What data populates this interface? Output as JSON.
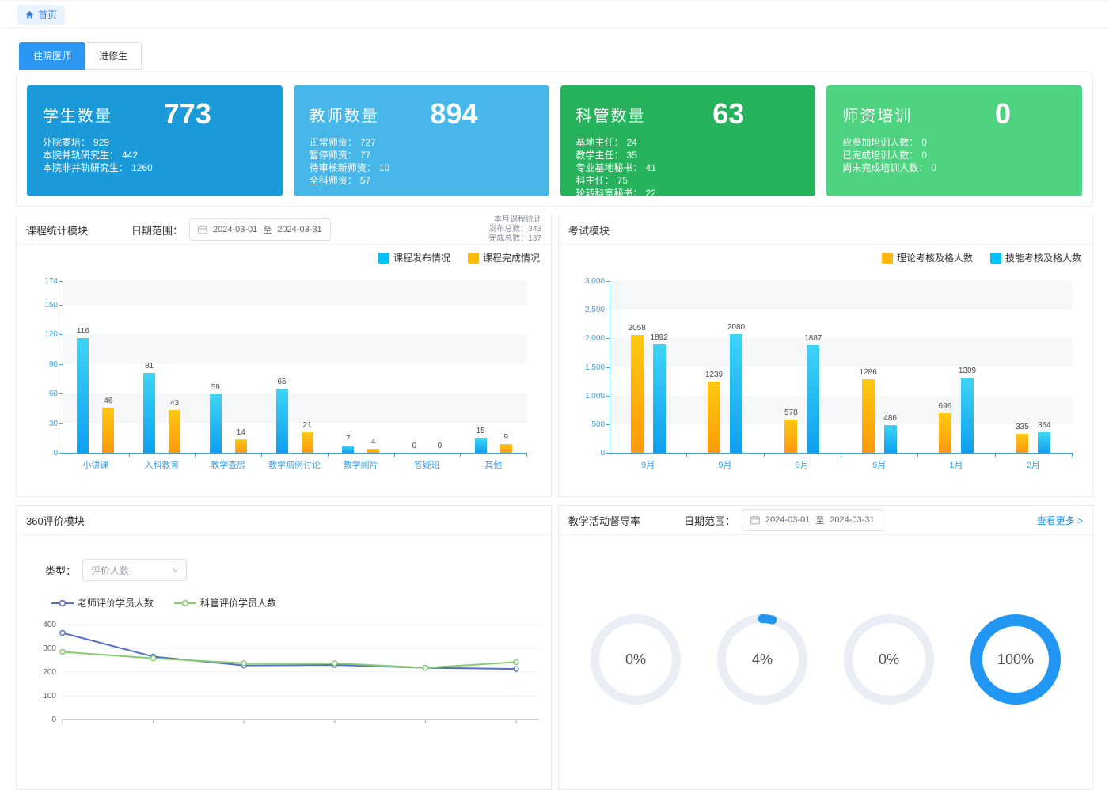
{
  "breadcrumb": {
    "home": "首页"
  },
  "tabs": [
    {
      "label": "住院医师",
      "active": true
    },
    {
      "label": "进修生",
      "active": false
    }
  ],
  "colors": {
    "accent_blue": "#2b96f3",
    "axis_blue": "#3aa2e8",
    "donut_blue": "#2196f3",
    "donut_track": "#e9edf4",
    "card_student": "#1a9ad8",
    "card_teacher": "#47b7ea",
    "card_dept": "#26b35c",
    "card_training": "#4ed480"
  },
  "stat_cards": [
    {
      "title": "学生数量",
      "value": "773",
      "bg": "#1a9ad8",
      "items": [
        {
          "label": "外院委培：",
          "value": "929"
        },
        {
          "label": "本院并轨研究生：",
          "value": "442"
        },
        {
          "label": "本院非并轨研究生：",
          "value": "1260"
        }
      ]
    },
    {
      "title": "教师数量",
      "value": "894",
      "bg": "#47b7ea",
      "items": [
        {
          "label": "正常师资：",
          "value": "727"
        },
        {
          "label": "暂停师资：",
          "value": "77"
        },
        {
          "label": "待审核新师资：",
          "value": "10"
        },
        {
          "label": "全科师资：",
          "value": "57"
        }
      ]
    },
    {
      "title": "科管数量",
      "value": "63",
      "bg": "#26b35c",
      "items": [
        {
          "label": "基地主任：",
          "value": "24"
        },
        {
          "label": "教学主任：",
          "value": "35"
        },
        {
          "label": "专业基地秘书：",
          "value": "41"
        },
        {
          "label": "科主任：",
          "value": "75"
        },
        {
          "label": "轮转科室秘书：",
          "value": "22"
        }
      ]
    },
    {
      "title": "师资培训",
      "value": "0",
      "bg": "#4ed480",
      "items": [
        {
          "label": "应参加培训人数：",
          "value": "0"
        },
        {
          "label": "已完成培训人数：",
          "value": "0"
        },
        {
          "label": "尚未完成培训人数：",
          "value": "0"
        }
      ]
    }
  ],
  "course_module": {
    "title": "课程统计模块",
    "date_label": "日期范围：",
    "date_start": "2024-03-01",
    "date_sep": "至",
    "date_end": "2024-03-31",
    "summary_line1": "本月课程统计",
    "summary_line2": "发布总数：343",
    "summary_line3": "完成总数：137"
  },
  "exam_module": {
    "title": "考试模块"
  },
  "eval_module": {
    "title": "360评价模块",
    "type_label": "类型：",
    "type_value": "评价人数"
  },
  "supervision_module": {
    "title": "教学活动督导率",
    "date_label": "日期范围：",
    "date_start": "2024-03-01",
    "date_sep": "至",
    "date_end": "2024-03-31",
    "more_link": "查看更多 >",
    "donuts": [
      {
        "label": "0%"
      },
      {
        "label": "4%"
      },
      {
        "label": "0%"
      },
      {
        "label": "100%"
      }
    ]
  },
  "chart_data": [
    {
      "id": "course",
      "type": "bar",
      "title": "课程统计模块",
      "categories": [
        "小讲课",
        "入科教育",
        "教学查房",
        "教学病例讨论",
        "教学阅片",
        "答疑班",
        "其他"
      ],
      "series": [
        {
          "name": "课程发布情况",
          "values": [
            116,
            81,
            59,
            65,
            7,
            0,
            15
          ],
          "gradient": [
            "#3fd4f4",
            "#0f9ff0"
          ],
          "legend_color": "#00c0f5"
        },
        {
          "name": "课程完成情况",
          "values": [
            46,
            43,
            14,
            21,
            4,
            0,
            9
          ],
          "gradient": [
            "#ffc813",
            "#ff990d"
          ],
          "legend_color": "#ffb80e"
        }
      ],
      "ylim": [
        0,
        174
      ],
      "yticks": [
        0,
        30,
        60,
        90,
        120,
        150,
        174
      ],
      "legend_position": "top-right",
      "grid": "split-area"
    },
    {
      "id": "exam",
      "type": "bar",
      "title": "考试模块",
      "categories": [
        "9月",
        "9月",
        "9月",
        "9月",
        "1月",
        "2月"
      ],
      "series": [
        {
          "name": "理论考核及格人数",
          "values": [
            2058,
            1239,
            578,
            1286,
            696,
            335
          ],
          "gradient": [
            "#ffc813",
            "#ff990d"
          ],
          "legend_color": "#ffb80e"
        },
        {
          "name": "技能考核及格人数",
          "values": [
            1892,
            2080,
            1887,
            486,
            1309,
            354
          ],
          "gradient": [
            "#3fd4f4",
            "#0f9ff0"
          ],
          "legend_color": "#00c0f5"
        }
      ],
      "ylim": [
        0,
        3000
      ],
      "yticks": [
        0,
        500,
        1000,
        1500,
        2000,
        2500,
        3000
      ],
      "ytick_labels": [
        "0",
        "500",
        "1,000",
        "1,500",
        "2,000",
        "2,500",
        "3,000"
      ],
      "legend_position": "top-right",
      "grid": "split-area"
    },
    {
      "id": "eval360",
      "type": "line",
      "title": "360评价模块",
      "series": [
        {
          "name": "老师评价学员人数",
          "values": [
            365,
            265,
            228,
            230,
            218,
            213
          ],
          "color": "#5470c6"
        },
        {
          "name": "科管评价学员人数",
          "values": [
            285,
            258,
            237,
            237,
            218,
            242
          ],
          "color": "#85cc71"
        }
      ],
      "ylim": [
        0,
        400
      ],
      "yticks": [
        0,
        100,
        200,
        300,
        400
      ],
      "grid": "horizontal"
    },
    {
      "id": "supervision",
      "type": "donut",
      "title": "教学活动督导率",
      "values": [
        0,
        4,
        0,
        100
      ],
      "labels": [
        "0%",
        "4%",
        "0%",
        "100%"
      ]
    }
  ]
}
